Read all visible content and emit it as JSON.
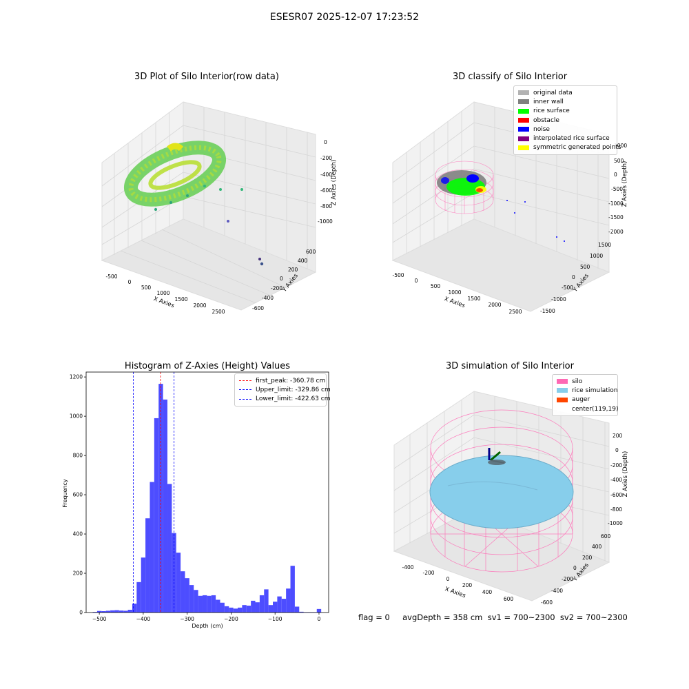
{
  "suptitle": "ESESR07 2025-12-07 17:23:52",
  "panels": {
    "raw": {
      "title": "3D Plot of Silo Interior(row data)",
      "xlabel": "X Axies",
      "ylabel": "Y Axies",
      "zlabel": "Z Axies (Depth)",
      "xticks": [
        "-500",
        "0",
        "500",
        "1000",
        "1500",
        "2000",
        "2500"
      ],
      "yticks": [
        "600",
        "400",
        "200",
        "0",
        "-200",
        "-400",
        "-600"
      ],
      "zticks": [
        "0",
        "-200",
        "-400",
        "-600",
        "-800",
        "-1000"
      ]
    },
    "classify": {
      "title": "3D classify of Silo Interior",
      "xlabel": "X Axies",
      "ylabel": "Y Axies",
      "zlabel": "Z Axies (Depth)",
      "xticks": [
        "-500",
        "0",
        "500",
        "1000",
        "1500",
        "2000",
        "2500"
      ],
      "yticks": [
        "1500",
        "1000",
        "500",
        "0",
        "-500",
        "-1000",
        "-1500"
      ],
      "zticks": [
        "1000",
        "500",
        "0",
        "-500",
        "-1000",
        "-1500",
        "-2000"
      ],
      "legend": [
        {
          "label": "original data",
          "color": "#b3b3b3"
        },
        {
          "label": "inner wall",
          "color": "#808080"
        },
        {
          "label": "rice surface",
          "color": "#00ff00"
        },
        {
          "label": "obstacle",
          "color": "#ff0000"
        },
        {
          "label": "noise",
          "color": "#0000ff"
        },
        {
          "label": "interpolated rice surface",
          "color": "#800080"
        },
        {
          "label": "symmetric generated points",
          "color": "#ffff00"
        }
      ]
    },
    "simulation": {
      "title": "3D simulation of Silo Interior",
      "xlabel": "X Axies",
      "ylabel": "Y Axies",
      "zlabel": "Z Axies (Depth)",
      "xticks": [
        "-400",
        "-200",
        "0",
        "200",
        "400",
        "600"
      ],
      "yticks": [
        "600",
        "400",
        "200",
        "0",
        "-200",
        "-400",
        "-600"
      ],
      "zticks": [
        "200",
        "0",
        "-200",
        "-400",
        "-600",
        "-800",
        "-1000"
      ],
      "legend": [
        {
          "label": "silo",
          "color": "#ff69b4"
        },
        {
          "label": "rice simulation",
          "color": "#87ceeb"
        },
        {
          "label": "auger",
          "color": "#ff4500"
        },
        {
          "label": "center(119,19)",
          "color": "#ffffff"
        }
      ]
    }
  },
  "chart_data": {
    "type": "bar",
    "title": "Histogram of Z-Axies (Height) Values",
    "xlabel": "Depth (cm)",
    "ylabel": "Frequency",
    "xlim": [
      -530,
      22
    ],
    "ylim": [
      0,
      1225
    ],
    "xticks": [
      -500,
      -400,
      -300,
      -200,
      -100,
      0
    ],
    "yticks": [
      0,
      200,
      400,
      600,
      800,
      1000,
      1200
    ],
    "bin_width": 10,
    "bins": [
      {
        "x0": -515,
        "y": 3
      },
      {
        "x0": -505,
        "y": 8
      },
      {
        "x0": -495,
        "y": 7
      },
      {
        "x0": -485,
        "y": 9
      },
      {
        "x0": -475,
        "y": 11
      },
      {
        "x0": -465,
        "y": 12
      },
      {
        "x0": -455,
        "y": 10
      },
      {
        "x0": -445,
        "y": 9
      },
      {
        "x0": -435,
        "y": 14
      },
      {
        "x0": -425,
        "y": 45
      },
      {
        "x0": -415,
        "y": 155
      },
      {
        "x0": -405,
        "y": 280
      },
      {
        "x0": -395,
        "y": 480
      },
      {
        "x0": -385,
        "y": 665
      },
      {
        "x0": -375,
        "y": 990
      },
      {
        "x0": -365,
        "y": 1165
      },
      {
        "x0": -355,
        "y": 1085
      },
      {
        "x0": -345,
        "y": 655
      },
      {
        "x0": -335,
        "y": 405
      },
      {
        "x0": -325,
        "y": 305
      },
      {
        "x0": -315,
        "y": 210
      },
      {
        "x0": -305,
        "y": 175
      },
      {
        "x0": -295,
        "y": 140
      },
      {
        "x0": -285,
        "y": 115
      },
      {
        "x0": -275,
        "y": 85
      },
      {
        "x0": -265,
        "y": 88
      },
      {
        "x0": -255,
        "y": 85
      },
      {
        "x0": -245,
        "y": 88
      },
      {
        "x0": -235,
        "y": 65
      },
      {
        "x0": -225,
        "y": 50
      },
      {
        "x0": -215,
        "y": 32
      },
      {
        "x0": -205,
        "y": 25
      },
      {
        "x0": -195,
        "y": 20
      },
      {
        "x0": -185,
        "y": 25
      },
      {
        "x0": -175,
        "y": 38
      },
      {
        "x0": -165,
        "y": 35
      },
      {
        "x0": -155,
        "y": 60
      },
      {
        "x0": -145,
        "y": 52
      },
      {
        "x0": -135,
        "y": 88
      },
      {
        "x0": -125,
        "y": 118
      },
      {
        "x0": -115,
        "y": 38
      },
      {
        "x0": -105,
        "y": 55
      },
      {
        "x0": -95,
        "y": 82
      },
      {
        "x0": -85,
        "y": 70
      },
      {
        "x0": -75,
        "y": 122
      },
      {
        "x0": -65,
        "y": 238
      },
      {
        "x0": -55,
        "y": 30
      },
      {
        "x0": -45,
        "y": 4
      },
      {
        "x0": -35,
        "y": 2
      },
      {
        "x0": -25,
        "y": 2
      },
      {
        "x0": -15,
        "y": 2
      },
      {
        "x0": -5,
        "y": 18
      }
    ],
    "vlines": [
      {
        "label": "first_peak: -360.78 cm",
        "x": -360.78,
        "color": "#ff0000"
      },
      {
        "label": "Upper_limit: -329.86 cm",
        "x": -329.86,
        "color": "#0000ff"
      },
      {
        "label": "Lower_limit: -422.63 cm",
        "x": -422.63,
        "color": "#0000ff"
      }
    ],
    "bar_color": "#4d4dff",
    "legend_position": "top-right"
  },
  "footer": "flag = 0     avgDepth = 358 cm  sv1 = 700~2300  sv2 = 700~2300"
}
